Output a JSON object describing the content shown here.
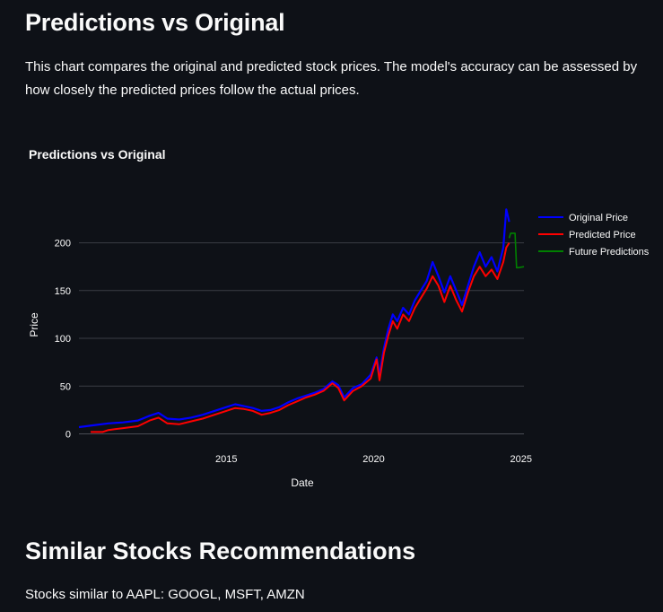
{
  "page": {
    "title": "Predictions vs Original",
    "description": "This chart compares the original and predicted stock prices. The model's accuracy can be assessed by how closely the predicted prices follow the actual prices.",
    "section_title": "Similar Stocks Recommendations",
    "similar_text": "Stocks similar to AAPL: GOOGL, MSFT, AMZN"
  },
  "colors": {
    "background": "#0e1117",
    "grid": "#3a3d45",
    "original": "#0000ff",
    "predicted": "#ff0000",
    "future": "#008000"
  },
  "chart_data": {
    "type": "line",
    "title": "Predictions vs Original",
    "xlabel": "Date",
    "ylabel": "Price",
    "xlim": [
      2010.0,
      2025.1
    ],
    "ylim": [
      -8,
      240
    ],
    "x_ticks": [
      2015,
      2020,
      2025
    ],
    "x_tick_labels": [
      "2015",
      "2020",
      "2025"
    ],
    "y_ticks": [
      0,
      50,
      100,
      150,
      200
    ],
    "y_tick_labels": [
      "0",
      "50",
      "100",
      "150",
      "200"
    ],
    "grid": true,
    "legend_position": "top-right",
    "series": [
      {
        "name": "Original Price",
        "x": [
          2010.0,
          2010.5,
          2011.0,
          2011.5,
          2012.0,
          2012.4,
          2012.7,
          2013.0,
          2013.4,
          2013.8,
          2014.2,
          2014.6,
          2015.0,
          2015.3,
          2015.6,
          2015.9,
          2016.2,
          2016.5,
          2016.8,
          2017.1,
          2017.4,
          2017.7,
          2018.0,
          2018.3,
          2018.6,
          2018.8,
          2019.0,
          2019.3,
          2019.6,
          2019.9,
          2020.1,
          2020.2,
          2020.35,
          2020.5,
          2020.65,
          2020.8,
          2021.0,
          2021.2,
          2021.4,
          2021.6,
          2021.8,
          2022.0,
          2022.2,
          2022.4,
          2022.6,
          2022.8,
          2023.0,
          2023.2,
          2023.4,
          2023.6,
          2023.8,
          2024.0,
          2024.2,
          2024.4,
          2024.5,
          2024.6
        ],
        "y": [
          7,
          9,
          11,
          12,
          14,
          19,
          22,
          16,
          15,
          17,
          20,
          24,
          28,
          31,
          29,
          27,
          24,
          25,
          28,
          33,
          37,
          40,
          43,
          47,
          55,
          51,
          38,
          48,
          52,
          62,
          80,
          62,
          90,
          110,
          125,
          118,
          132,
          125,
          140,
          150,
          160,
          180,
          165,
          148,
          165,
          150,
          135,
          155,
          175,
          190,
          175,
          185,
          170,
          195,
          235,
          222
        ]
      },
      {
        "name": "Predicted Price",
        "x": [
          2010.4,
          2010.8,
          2011.0,
          2011.5,
          2012.0,
          2012.4,
          2012.7,
          2013.0,
          2013.4,
          2013.8,
          2014.2,
          2014.6,
          2015.0,
          2015.3,
          2015.6,
          2015.9,
          2016.2,
          2016.5,
          2016.8,
          2017.1,
          2017.4,
          2017.7,
          2018.0,
          2018.3,
          2018.6,
          2018.8,
          2019.0,
          2019.3,
          2019.6,
          2019.9,
          2020.1,
          2020.2,
          2020.35,
          2020.5,
          2020.65,
          2020.8,
          2021.0,
          2021.2,
          2021.4,
          2021.6,
          2021.8,
          2022.0,
          2022.2,
          2022.4,
          2022.6,
          2022.8,
          2023.0,
          2023.2,
          2023.4,
          2023.6,
          2023.8,
          2024.0,
          2024.2,
          2024.4,
          2024.5,
          2024.6
        ],
        "y": [
          2,
          2,
          4,
          6,
          8,
          14,
          17,
          11,
          10,
          13,
          16,
          20,
          24,
          27,
          26,
          24,
          20,
          22,
          25,
          30,
          34,
          38,
          41,
          45,
          53,
          48,
          35,
          45,
          50,
          58,
          78,
          56,
          85,
          103,
          118,
          110,
          125,
          118,
          132,
          142,
          152,
          165,
          155,
          138,
          155,
          140,
          128,
          148,
          165,
          175,
          165,
          172,
          162,
          180,
          195,
          200
        ]
      },
      {
        "name": "Future Predictions",
        "x": [
          2024.6,
          2024.65,
          2024.8,
          2024.85,
          2024.9,
          2025.1
        ],
        "y": [
          205,
          210,
          210,
          174,
          174,
          175
        ]
      }
    ]
  }
}
